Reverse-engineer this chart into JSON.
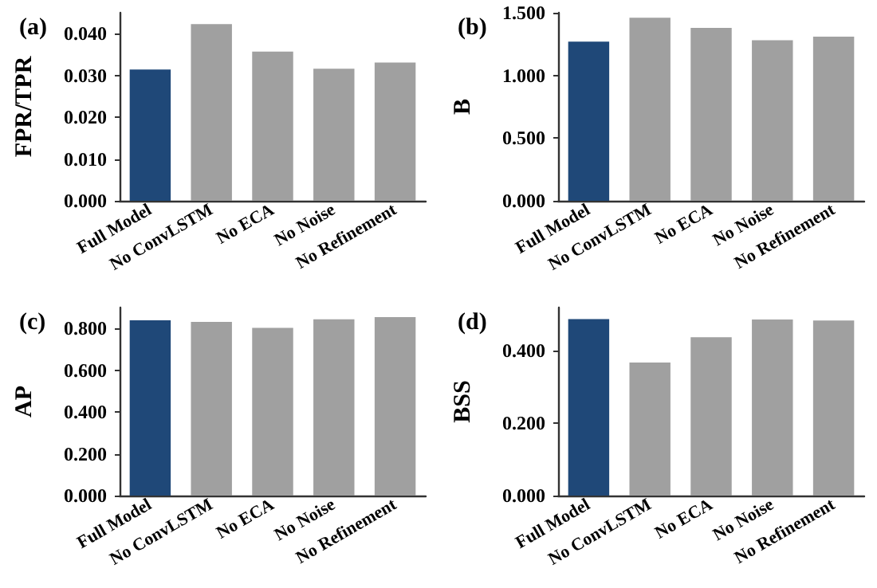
{
  "chart_data": [
    {
      "type": "bar",
      "categories": [
        "Full Model",
        "No ConvLSTM",
        "No ECA",
        "No Noise",
        "No Refinement"
      ],
      "values": [
        0.0314,
        0.0423,
        0.0357,
        0.0316,
        0.0331
      ],
      "colors": [
        "#1f4878",
        "#a0a0a0",
        "#a0a0a0",
        "#a0a0a0",
        "#a0a0a0"
      ],
      "ylabel": "FPR/TPR",
      "ylim": [
        0,
        0.045
      ],
      "yticks": [
        {
          "value": 0,
          "label": "0.000"
        },
        {
          "value": 0.01,
          "label": "0.010"
        },
        {
          "value": 0.02,
          "label": "0.020"
        },
        {
          "value": 0.03,
          "label": "0.030"
        },
        {
          "value": 0.04,
          "label": "0.040"
        }
      ],
      "annotations": [
        "(a)"
      ]
    },
    {
      "type": "bar",
      "categories": [
        "Full Model",
        "No ConvLSTM",
        "No ECA",
        "No Noise",
        "No Refinement"
      ],
      "values": [
        1.27,
        1.46,
        1.38,
        1.28,
        1.31
      ],
      "colors": [
        "#1f4878",
        "#a0a0a0",
        "#a0a0a0",
        "#a0a0a0",
        "#a0a0a0"
      ],
      "ylabel": "B",
      "ylim": [
        0,
        1.5
      ],
      "yticks": [
        {
          "value": 0,
          "label": "0.000"
        },
        {
          "value": 0.5,
          "label": "0.500"
        },
        {
          "value": 1,
          "label": "1.000"
        },
        {
          "value": 1.5,
          "label": "1.500"
        }
      ],
      "annotations": [
        "(b)"
      ]
    },
    {
      "type": "bar",
      "categories": [
        "Full Model",
        "No ConvLSTM",
        "No ECA",
        "No Noise",
        "No Refinement"
      ],
      "values": [
        0.839,
        0.831,
        0.803,
        0.844,
        0.854
      ],
      "colors": [
        "#1f4878",
        "#a0a0a0",
        "#a0a0a0",
        "#a0a0a0",
        "#a0a0a0"
      ],
      "ylabel": "AP",
      "ylim": [
        0,
        0.9
      ],
      "yticks": [
        {
          "value": 0,
          "label": "0.000"
        },
        {
          "value": 0.2,
          "label": "0.200"
        },
        {
          "value": 0.4,
          "label": "0.400"
        },
        {
          "value": 0.6,
          "label": "0.600"
        },
        {
          "value": 0.8,
          "label": "0.800"
        }
      ],
      "annotations": [
        "(c)"
      ]
    },
    {
      "type": "bar",
      "categories": [
        "Full Model",
        "No ConvLSTM",
        "No ECA",
        "No Noise",
        "No Refinement"
      ],
      "values": [
        0.488,
        0.368,
        0.438,
        0.487,
        0.484
      ],
      "colors": [
        "#1f4878",
        "#a0a0a0",
        "#a0a0a0",
        "#a0a0a0",
        "#a0a0a0"
      ],
      "ylabel": "BSS",
      "ylim": [
        0,
        0.52
      ],
      "yticks": [
        {
          "value": 0,
          "label": "0.000"
        },
        {
          "value": 0.2,
          "label": "0.200"
        },
        {
          "value": 0.4,
          "label": "0.400"
        }
      ],
      "annotations": [
        "(d)"
      ]
    }
  ]
}
